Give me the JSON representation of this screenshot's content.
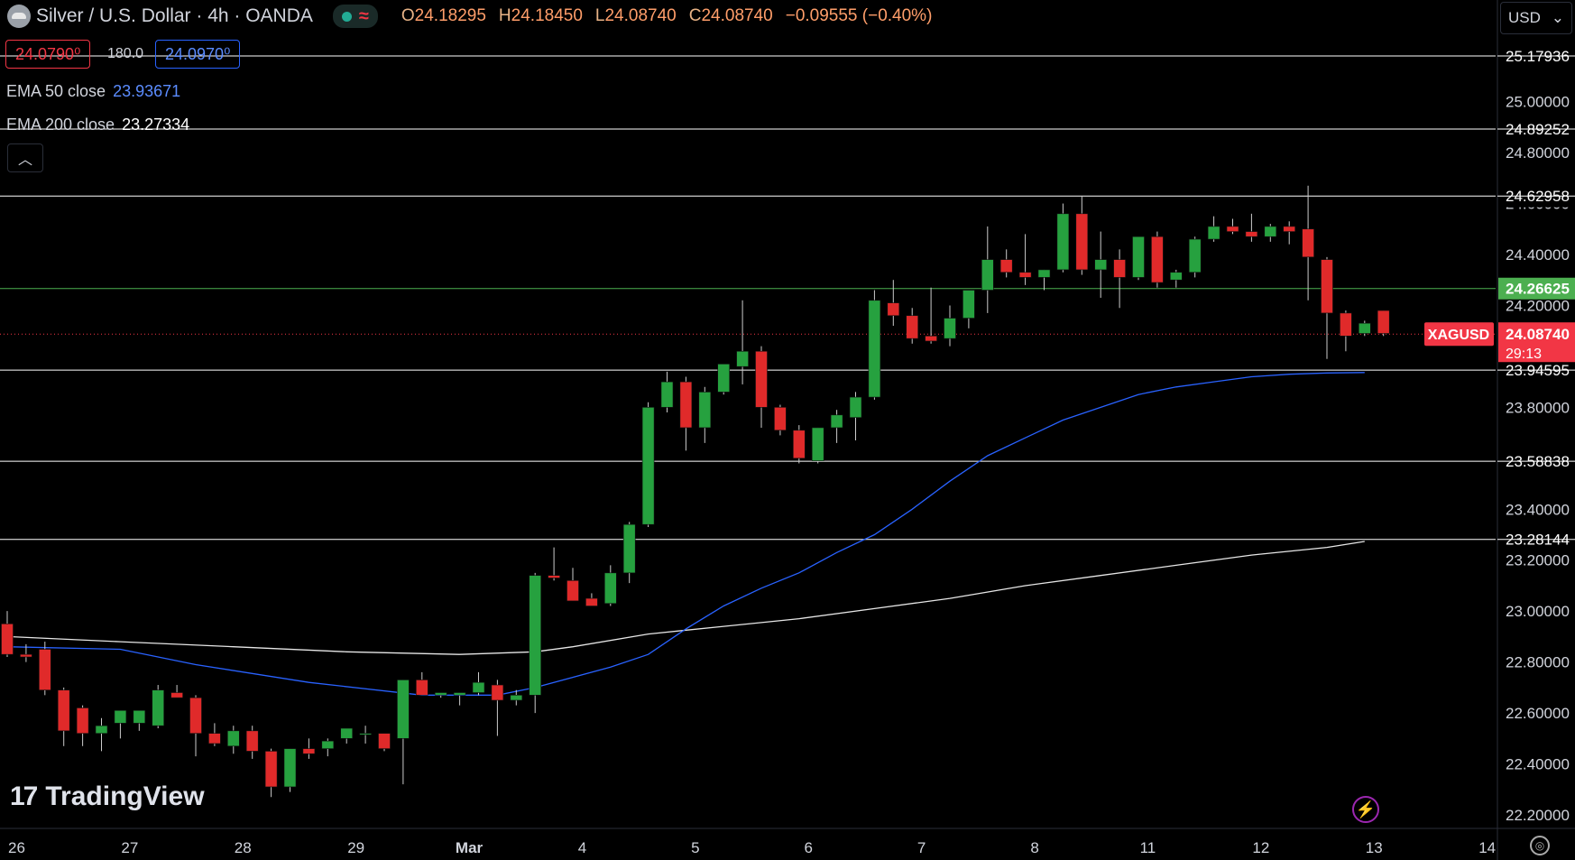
{
  "header": {
    "title": "Silver / U.S. Dollar · 4h · OANDA",
    "ohlc": {
      "o_label": "O",
      "o": "24.18295",
      "h_label": "H",
      "h": "24.18450",
      "l_label": "L",
      "l": "24.08740",
      "c_label": "C",
      "c": "24.08740",
      "change": "−0.09555 (−0.40%)"
    },
    "currency": "USD",
    "currency_icon": "chevron-down-icon"
  },
  "quote": {
    "sell": "24.0790⁰",
    "spread": "180.0",
    "buy": "24.0970⁰"
  },
  "legend": {
    "ema50_label": "EMA 50 close",
    "ema50_value": "23.93671",
    "ema200_label": "EMA 200 close",
    "ema200_value": "23.27334",
    "collapse_icon": "chevron-up-icon"
  },
  "brand": {
    "name": "TradingView",
    "mark": "17"
  },
  "colors": {
    "up": "#26a13f",
    "down": "#e02a2a",
    "ema50": "#2962ff",
    "ema200": "#e6e6e6",
    "price_tag": "#f23645",
    "green_level": "#4caf50"
  },
  "chart_data": {
    "type": "candlestick",
    "symbol": "XAGUSD",
    "timeframe": "4h",
    "ylim": [
      22.18,
      25.3
    ],
    "y_ticks": [
      "25.00000",
      "24.80000",
      "24.60000",
      "24.40000",
      "24.20000",
      "23.80000",
      "23.40000",
      "23.20000",
      "23.00000",
      "22.80000",
      "22.60000",
      "22.40000",
      "22.20000"
    ],
    "x_ticks": [
      {
        "label": "26",
        "index": 0.5
      },
      {
        "label": "27",
        "index": 6.5
      },
      {
        "label": "28",
        "index": 12.5
      },
      {
        "label": "29",
        "index": 18.5
      },
      {
        "label": "Mar",
        "index": 24.5
      },
      {
        "label": "4",
        "index": 30.5
      },
      {
        "label": "5",
        "index": 36.5
      },
      {
        "label": "6",
        "index": 42.5
      },
      {
        "label": "7",
        "index": 48.5
      },
      {
        "label": "8",
        "index": 54.5
      },
      {
        "label": "11",
        "index": 60.5
      },
      {
        "label": "12",
        "index": 66.5
      },
      {
        "label": "13",
        "index": 72.5
      },
      {
        "label": "14",
        "index": 78.5
      }
    ],
    "candles": [
      [
        22.95,
        23.0,
        22.82,
        22.83
      ],
      [
        22.83,
        22.87,
        22.8,
        22.82
      ],
      [
        22.85,
        22.88,
        22.67,
        22.69
      ],
      [
        22.69,
        22.7,
        22.47,
        22.53
      ],
      [
        22.62,
        22.63,
        22.47,
        22.52
      ],
      [
        22.52,
        22.58,
        22.45,
        22.55
      ],
      [
        22.56,
        22.6,
        22.5,
        22.61
      ],
      [
        22.56,
        22.6,
        22.53,
        22.61
      ],
      [
        22.55,
        22.71,
        22.54,
        22.69
      ],
      [
        22.68,
        22.71,
        22.66,
        22.66
      ],
      [
        22.66,
        22.67,
        22.43,
        22.52
      ],
      [
        22.52,
        22.56,
        22.47,
        22.48
      ],
      [
        22.47,
        22.55,
        22.44,
        22.53
      ],
      [
        22.53,
        22.55,
        22.42,
        22.45
      ],
      [
        22.45,
        22.46,
        22.27,
        22.31
      ],
      [
        22.31,
        22.46,
        22.29,
        22.46
      ],
      [
        22.46,
        22.5,
        22.42,
        22.44
      ],
      [
        22.46,
        22.5,
        22.43,
        22.49
      ],
      [
        22.5,
        22.53,
        22.48,
        22.54
      ],
      [
        22.52,
        22.55,
        22.48,
        22.52
      ],
      [
        22.52,
        22.52,
        22.45,
        22.46
      ],
      [
        22.5,
        22.73,
        22.32,
        22.73
      ],
      [
        22.73,
        22.76,
        22.67,
        22.67
      ],
      [
        22.67,
        22.68,
        22.66,
        22.68
      ],
      [
        22.67,
        22.68,
        22.63,
        22.68
      ],
      [
        22.68,
        22.76,
        22.67,
        22.72
      ],
      [
        22.71,
        22.73,
        22.51,
        22.65
      ],
      [
        22.65,
        22.69,
        22.63,
        22.67
      ],
      [
        22.67,
        23.15,
        22.6,
        23.14
      ],
      [
        23.14,
        23.25,
        23.12,
        23.13
      ],
      [
        23.12,
        23.17,
        23.04,
        23.04
      ],
      [
        23.05,
        23.07,
        23.03,
        23.02
      ],
      [
        23.03,
        23.18,
        23.02,
        23.15
      ],
      [
        23.15,
        23.35,
        23.11,
        23.34
      ],
      [
        23.34,
        23.82,
        23.33,
        23.8
      ],
      [
        23.8,
        23.94,
        23.78,
        23.9
      ],
      [
        23.9,
        23.92,
        23.63,
        23.72
      ],
      [
        23.72,
        23.88,
        23.66,
        23.86
      ],
      [
        23.86,
        23.96,
        23.85,
        23.97
      ],
      [
        23.96,
        24.22,
        23.89,
        24.02
      ],
      [
        24.02,
        24.04,
        23.72,
        23.8
      ],
      [
        23.8,
        23.81,
        23.69,
        23.71
      ],
      [
        23.71,
        23.73,
        23.58,
        23.6
      ],
      [
        23.59,
        23.72,
        23.58,
        23.72
      ],
      [
        23.72,
        23.79,
        23.66,
        23.77
      ],
      [
        23.76,
        23.86,
        23.67,
        23.84
      ],
      [
        23.84,
        24.26,
        23.83,
        24.22
      ],
      [
        24.21,
        24.3,
        24.12,
        24.16
      ],
      [
        24.16,
        24.19,
        24.05,
        24.07
      ],
      [
        24.08,
        24.27,
        24.05,
        24.06
      ],
      [
        24.07,
        24.2,
        24.04,
        24.15
      ],
      [
        24.15,
        24.26,
        24.11,
        24.26
      ],
      [
        24.26,
        24.51,
        24.17,
        24.38
      ],
      [
        24.38,
        24.42,
        24.31,
        24.33
      ],
      [
        24.33,
        24.48,
        24.28,
        24.31
      ],
      [
        24.31,
        24.34,
        24.26,
        24.34
      ],
      [
        24.34,
        24.6,
        24.33,
        24.56
      ],
      [
        24.56,
        24.63,
        24.32,
        24.34
      ],
      [
        24.34,
        24.49,
        24.23,
        24.38
      ],
      [
        24.38,
        24.42,
        24.19,
        24.31
      ],
      [
        24.31,
        24.47,
        24.3,
        24.47
      ],
      [
        24.47,
        24.49,
        24.27,
        24.29
      ],
      [
        24.3,
        24.34,
        24.27,
        24.33
      ],
      [
        24.33,
        24.47,
        24.31,
        24.46
      ],
      [
        24.46,
        24.55,
        24.45,
        24.51
      ],
      [
        24.51,
        24.54,
        24.48,
        24.49
      ],
      [
        24.49,
        24.56,
        24.45,
        24.47
      ],
      [
        24.47,
        24.52,
        24.45,
        24.51
      ],
      [
        24.51,
        24.53,
        24.44,
        24.49
      ],
      [
        24.5,
        24.67,
        24.22,
        24.39
      ],
      [
        24.38,
        24.39,
        23.99,
        24.17
      ],
      [
        24.17,
        24.18,
        24.02,
        24.08
      ],
      [
        24.09,
        24.14,
        24.08,
        24.13
      ],
      [
        24.18,
        24.18,
        24.08,
        24.09
      ]
    ],
    "ema50": [
      [
        0,
        22.86
      ],
      [
        6,
        22.85
      ],
      [
        10,
        22.79
      ],
      [
        16,
        22.72
      ],
      [
        22,
        22.67
      ],
      [
        26,
        22.67
      ],
      [
        28,
        22.7
      ],
      [
        32,
        22.78
      ],
      [
        34,
        22.83
      ],
      [
        36,
        22.93
      ],
      [
        38,
        23.02
      ],
      [
        40,
        23.09
      ],
      [
        42,
        23.15
      ],
      [
        44,
        23.23
      ],
      [
        46,
        23.3
      ],
      [
        48,
        23.4
      ],
      [
        50,
        23.51
      ],
      [
        52,
        23.61
      ],
      [
        54,
        23.68
      ],
      [
        56,
        23.75
      ],
      [
        58,
        23.8
      ],
      [
        60,
        23.85
      ],
      [
        62,
        23.88
      ],
      [
        64,
        23.9
      ],
      [
        66,
        23.92
      ],
      [
        68,
        23.93
      ],
      [
        70,
        23.935
      ],
      [
        72,
        23.9367
      ]
    ],
    "ema200": [
      [
        0,
        22.9
      ],
      [
        6,
        22.88
      ],
      [
        12,
        22.86
      ],
      [
        18,
        22.84
      ],
      [
        24,
        22.83
      ],
      [
        28,
        22.84
      ],
      [
        30,
        22.86
      ],
      [
        34,
        22.91
      ],
      [
        38,
        22.94
      ],
      [
        42,
        22.97
      ],
      [
        46,
        23.01
      ],
      [
        50,
        23.05
      ],
      [
        54,
        23.1
      ],
      [
        58,
        23.14
      ],
      [
        62,
        23.18
      ],
      [
        66,
        23.22
      ],
      [
        70,
        23.25
      ],
      [
        72,
        23.2733
      ]
    ],
    "horizontal_levels": [
      {
        "value": 25.17936,
        "label": "25.17936",
        "color": "#ffffff"
      },
      {
        "value": 24.89252,
        "label": "24.89252",
        "color": "#ffffff"
      },
      {
        "value": 24.62958,
        "label": "24.62958",
        "color": "#ffffff"
      },
      {
        "value": 24.26625,
        "label": "24.26625",
        "color": "#4caf50"
      },
      {
        "value": 23.94595,
        "label": "23.94595",
        "color": "#ffffff"
      },
      {
        "value": 23.58838,
        "label": "23.58838",
        "color": "#ffffff"
      },
      {
        "value": 23.28144,
        "label": "23.28144",
        "color": "#ffffff"
      }
    ],
    "last_price": {
      "value": 24.0874,
      "label": "24.08740",
      "countdown": "29:13",
      "symbol": "XAGUSD"
    }
  }
}
